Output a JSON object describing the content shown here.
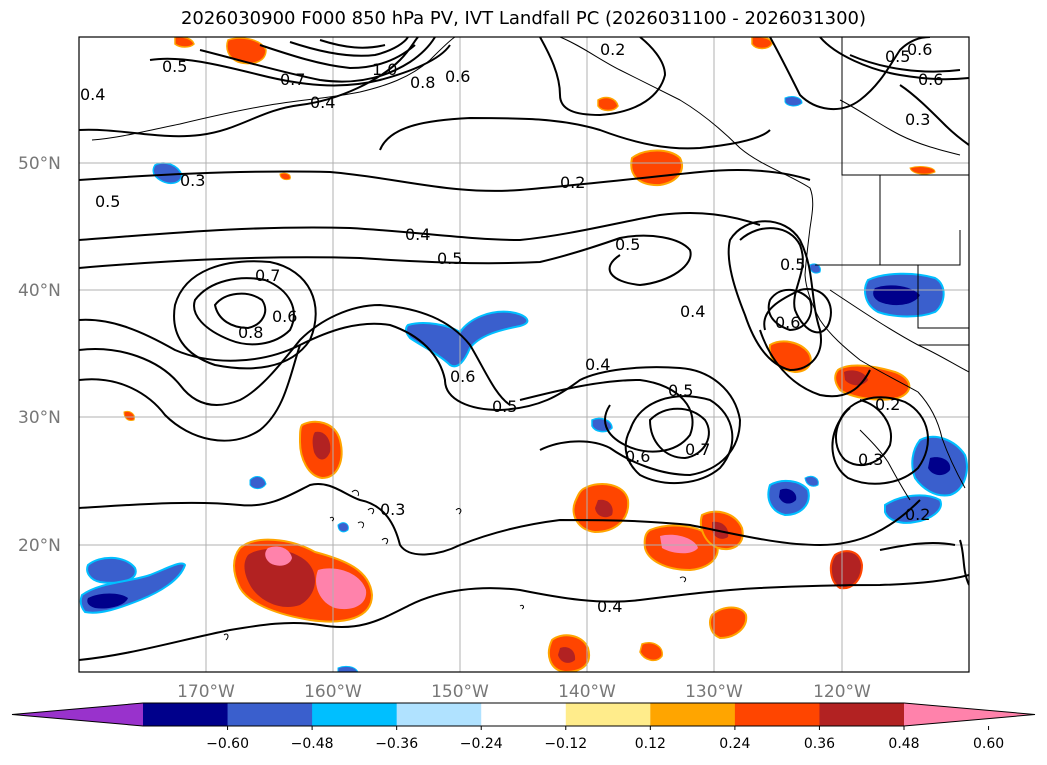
{
  "title": "2026030900 F000 850 hPa PV, IVT Landfall PC (2026031100 - 2026031300)",
  "lat_labels": [
    "50°N",
    "40°N",
    "30°N",
    "20°N"
  ],
  "lon_labels": [
    "170°W",
    "160°W",
    "150°W",
    "140°W",
    "130°W",
    "120°W"
  ],
  "colorbar": {
    "colors": [
      "#9932cc",
      "#00008b",
      "#3a5fcd",
      "#00bfff",
      "#b0e2ff",
      "#ffffff",
      "#ffec8b",
      "#ffa500",
      "#ff4500",
      "#b22222",
      "#ff82ab"
    ],
    "ticks": [
      "−0.60",
      "−0.48",
      "−0.36",
      "−0.24",
      "−0.12",
      "0.12",
      "0.24",
      "0.36",
      "0.48",
      "0.60"
    ]
  },
  "contour_labels": [
    "0.5",
    "0.4",
    "0.7",
    "0.8",
    "0.6",
    "1.0",
    "0.3",
    "0.2",
    "0.5",
    "0.4",
    "0.5",
    "0.7",
    "0.6",
    "0.8",
    "0.6",
    "0.5",
    "0.4",
    "0.5",
    "0.6",
    "0.4",
    "0.5",
    "0.7",
    "0.6",
    "0.4",
    "0.6",
    "0.5",
    "0.2",
    "0.3",
    "0.3",
    "0.2",
    "0.5",
    "0.6",
    "0.4",
    "0.3",
    "0.2"
  ]
}
